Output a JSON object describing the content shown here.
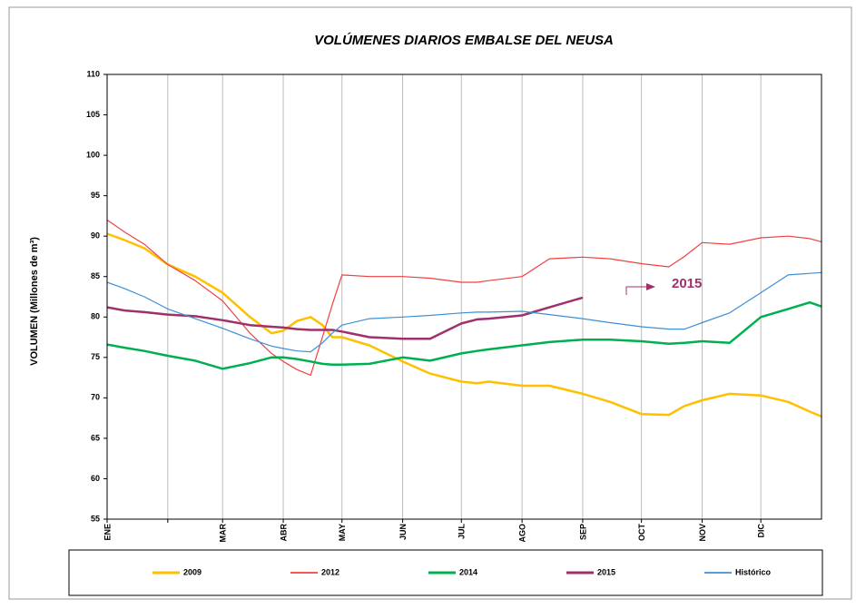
{
  "chart_data": {
    "type": "line",
    "title": "VOLÚMENES DIARIOS EMBALSE DEL NEUSA",
    "y_label": "VOLUMEN (Millones de m³)",
    "annotation": "2015",
    "x": [
      1,
      10,
      20,
      32,
      46,
      60,
      74,
      85,
      91,
      98,
      105,
      111,
      116,
      121,
      135,
      152,
      166,
      182,
      190,
      196,
      213,
      227,
      244,
      258,
      274,
      288,
      296,
      305,
      319,
      335,
      349,
      360,
      366
    ],
    "xlim": [
      1,
      366
    ],
    "xticks": [
      {
        "value": 1,
        "label": "ENE"
      },
      {
        "value": 32,
        "label": null
      },
      {
        "value": 60,
        "label": "MAR"
      },
      {
        "value": 91,
        "label": "ABR"
      },
      {
        "value": 121,
        "label": "MAY"
      },
      {
        "value": 152,
        "label": "JUN"
      },
      {
        "value": 182,
        "label": "JUL"
      },
      {
        "value": 213,
        "label": "AGO"
      },
      {
        "value": 244,
        "label": "SEP"
      },
      {
        "value": 274,
        "label": "OCT"
      },
      {
        "value": 305,
        "label": "NOV"
      },
      {
        "value": 335,
        "label": "DIC"
      }
    ],
    "xgrid": true,
    "ylim": [
      55,
      110
    ],
    "yticks": [
      55,
      60,
      65,
      70,
      75,
      80,
      85,
      90,
      95,
      100,
      105,
      110
    ],
    "series": [
      {
        "name": "2009",
        "color": "#ffc000",
        "width": 2.5,
        "values": [
          90.3,
          89.5,
          88.5,
          86.5,
          85,
          83,
          80,
          78,
          78.3,
          79.5,
          80,
          79,
          77.5,
          77.5,
          76.5,
          74.5,
          73,
          72,
          71.8,
          72,
          71.5,
          71.5,
          70.5,
          69.5,
          68,
          67.9,
          69,
          69.7,
          70.5,
          70.3,
          69.5,
          68.3,
          67.7
        ]
      },
      {
        "name": "2012",
        "color": "#f04040",
        "width": 1.2,
        "values": [
          92,
          90.5,
          89,
          86.5,
          84.5,
          82,
          78,
          75.5,
          74.5,
          73.5,
          72.8,
          77.5,
          81.5,
          85.2,
          85,
          85,
          84.8,
          84.3,
          84.3,
          84.5,
          85,
          87.2,
          87.4,
          87.2,
          86.6,
          86.2,
          87.5,
          89.2,
          89,
          89.8,
          90,
          89.7,
          89.3
        ]
      },
      {
        "name": "2014",
        "color": "#00b050",
        "width": 2.5,
        "values": [
          76.6,
          76.2,
          75.8,
          75.2,
          74.6,
          73.6,
          74.3,
          75,
          75,
          74.8,
          74.5,
          74.2,
          74.1,
          74.1,
          74.2,
          75,
          74.6,
          75.5,
          75.8,
          76,
          76.5,
          76.9,
          77.2,
          77.2,
          77,
          76.7,
          76.8,
          77,
          76.8,
          80,
          81,
          81.8,
          81.3
        ]
      },
      {
        "name": "2015",
        "color": "#a0306a",
        "width": 2.5,
        "values": [
          81.2,
          80.8,
          80.6,
          80.3,
          80.1,
          79.6,
          79,
          78.8,
          78.7,
          78.5,
          78.4,
          78.4,
          78.4,
          78.2,
          77.5,
          77.3,
          77.3,
          79.2,
          79.7,
          79.8,
          80.2,
          81.2,
          82.4,
          null,
          null,
          null,
          null,
          null,
          null,
          null,
          null,
          null,
          null
        ]
      },
      {
        "name": "Histórico",
        "color": "#3d8fd6",
        "width": 1.2,
        "values": [
          84.3,
          83.5,
          82.5,
          81,
          79.8,
          78.6,
          77.3,
          76.4,
          76.1,
          75.8,
          75.7,
          76.8,
          78,
          79,
          79.8,
          80,
          80.2,
          80.5,
          80.6,
          80.6,
          80.7,
          80.3,
          79.8,
          79.3,
          78.8,
          78.5,
          78.5,
          79.3,
          80.5,
          83,
          85.2,
          85.4,
          85.5
        ]
      }
    ]
  }
}
